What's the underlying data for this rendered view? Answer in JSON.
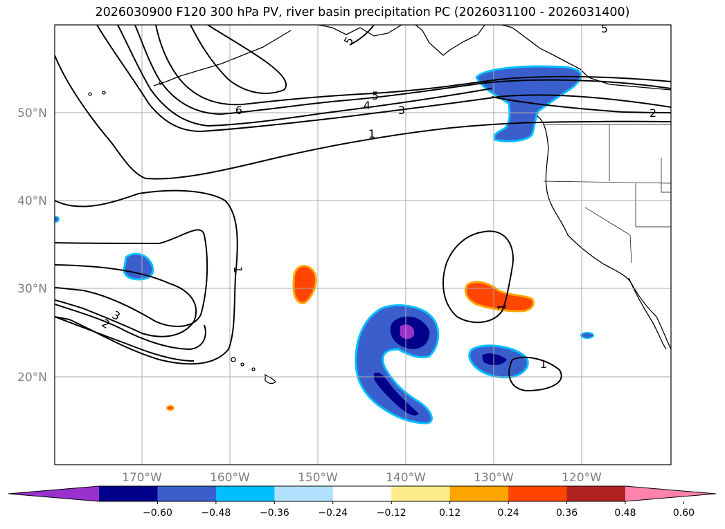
{
  "title": "2026030900 F120 300 hPa PV, river basin precipitation PC (2026031100 - 2026031400)",
  "lat_labels": [
    "50°N",
    "40°N",
    "30°N",
    "20°N"
  ],
  "lon_labels": [
    "170°W",
    "160°W",
    "150°W",
    "140°W",
    "130°W",
    "120°W"
  ],
  "contour_labels": [
    "5",
    "5",
    "6",
    "5",
    "4",
    "3",
    "1",
    "2",
    "1",
    "3",
    "2",
    "1",
    "1"
  ],
  "colorbar": {
    "ticks": [
      "−0.60",
      "−0.48",
      "−0.36",
      "−0.24",
      "−0.12",
      "0.12",
      "0.24",
      "0.36",
      "0.48",
      "0.60"
    ],
    "colors": [
      "#9932cc",
      "#00008b",
      "#3a5fcd",
      "#00bfff",
      "#b0e2ff",
      "#ffffff",
      "#ffec8b",
      "#ffa500",
      "#ff4500",
      "#b22222",
      "#ff82ab"
    ]
  }
}
